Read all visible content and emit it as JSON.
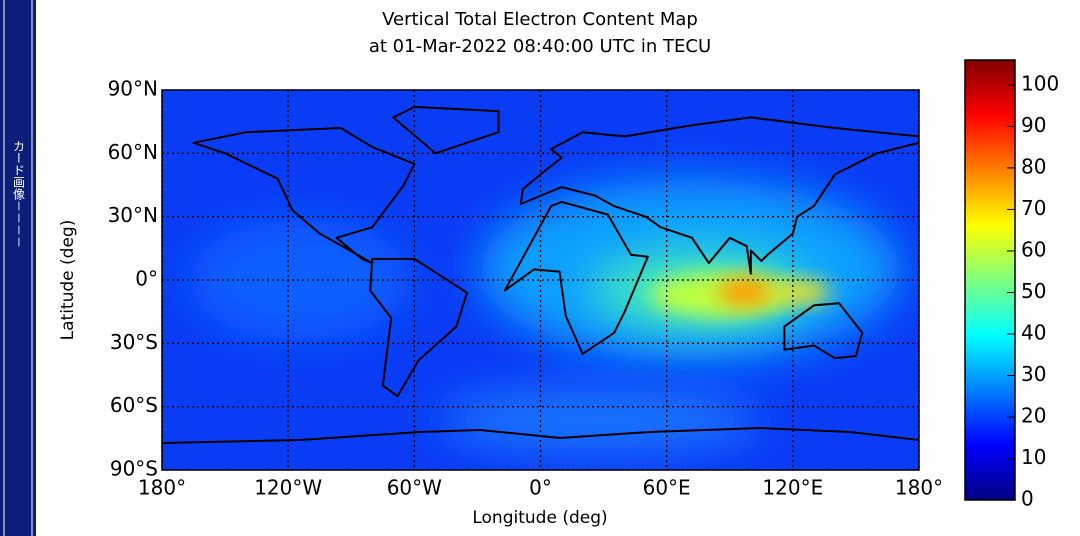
{
  "sidebar": {
    "label": "カード画像－－－－"
  },
  "chart_data": {
    "type": "map",
    "title": "Vertical Total Electron Content Map",
    "subtitle": "at 01-Mar-2022 08:40:00 UTC in TECU",
    "xlabel": "Longitude (deg)",
    "ylabel": "Latitude (deg)",
    "xlim": [
      -180,
      180
    ],
    "xticks": [
      {
        "value": -180,
        "label": "180°"
      },
      {
        "value": -120,
        "label": "120°W"
      },
      {
        "value": -60,
        "label": "60°W"
      },
      {
        "value": 0,
        "label": "0°"
      },
      {
        "value": 60,
        "label": "60°E"
      },
      {
        "value": 120,
        "label": "120°E"
      },
      {
        "value": 180,
        "label": "180°"
      }
    ],
    "ylim": [
      -90,
      90
    ],
    "yticks": [
      {
        "value": -90,
        "label": "90°S"
      },
      {
        "value": -60,
        "label": "60°S"
      },
      {
        "value": -30,
        "label": "30°S"
      },
      {
        "value": 0,
        "label": "0°"
      },
      {
        "value": 30,
        "label": "30°N"
      },
      {
        "value": 60,
        "label": "60°N"
      },
      {
        "value": 90,
        "label": "90°N"
      }
    ],
    "grid": true,
    "clim": [
      0,
      106
    ],
    "cticks": [
      0,
      10,
      20,
      30,
      40,
      50,
      60,
      70,
      80,
      90,
      100
    ]
  }
}
